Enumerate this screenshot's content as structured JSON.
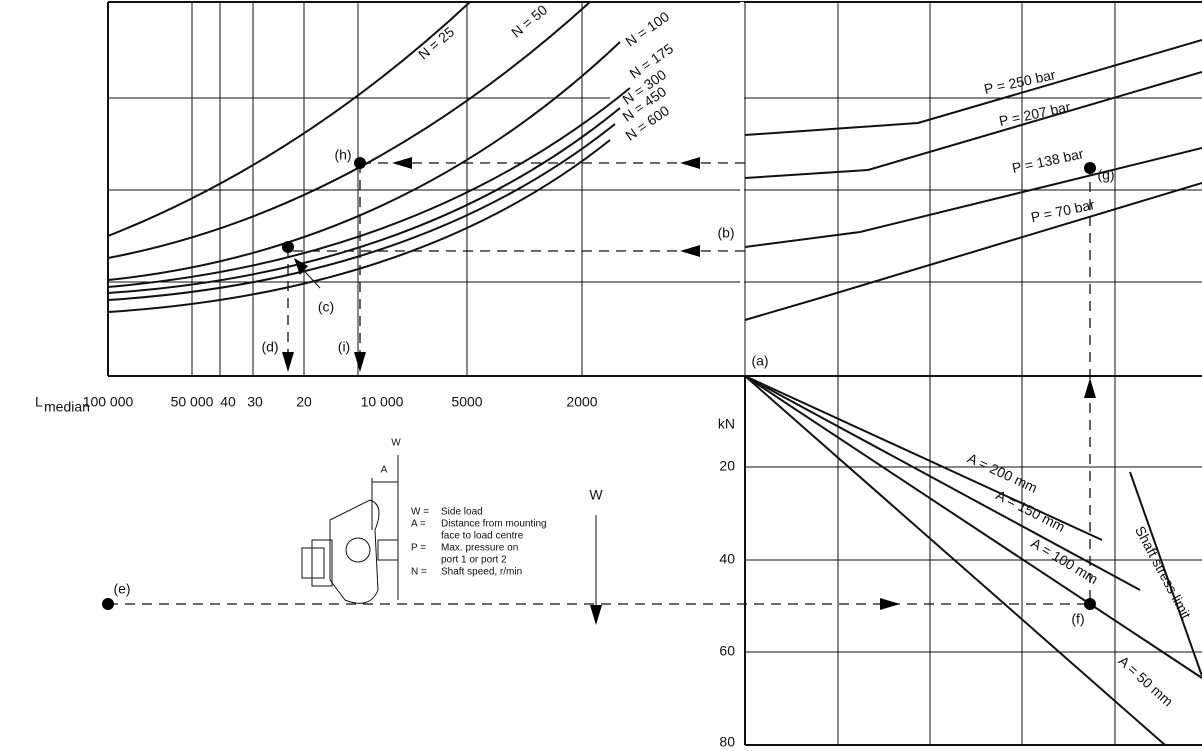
{
  "axis": {
    "label_main": "L",
    "label_sub": "median",
    "ticks": [
      "100 000",
      "50 000",
      "40",
      "30",
      "20",
      "10 000",
      "5000",
      "2000"
    ]
  },
  "force_axis": {
    "unit": "kN",
    "ticks": [
      "20",
      "40",
      "60",
      "80"
    ]
  },
  "speed_curves": [
    "N = 25",
    "N = 50",
    "N = 100",
    "N = 175",
    "N = 300",
    "N = 450",
    "N = 600"
  ],
  "pressure_curves": [
    "P = 250 bar",
    "P = 207 bar",
    "P = 138 bar",
    "P = 70 bar"
  ],
  "distance_lines": [
    "A = 200 mm",
    "A = 150 mm",
    "A = 100 mm",
    "A = 50 mm"
  ],
  "shaft_limit": "Shaft stress limit",
  "points": [
    "(a)",
    "(b)",
    "(c)",
    "(d)",
    "(e)",
    "(f)",
    "(g)",
    "(h)",
    "(i)"
  ],
  "legend": {
    "diagram_w": "W",
    "diagram_a": "A",
    "entries": [
      {
        "symbol": "W =",
        "lines": [
          "Side load"
        ]
      },
      {
        "symbol": "A =",
        "lines": [
          "Distance from mounting",
          "face to load centre"
        ]
      },
      {
        "symbol": "P =",
        "lines": [
          "Max. pressure on",
          "port 1 or port 2"
        ]
      },
      {
        "symbol": "N =",
        "lines": [
          "Shaft speed, r/min"
        ]
      }
    ],
    "arrow_label": "W"
  }
}
